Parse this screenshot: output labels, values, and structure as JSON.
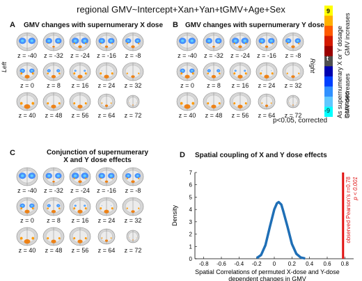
{
  "figure_title": "regional GMV~Intercept+Xan+Yan+tGMV+Age+Sex",
  "panels": {
    "A": {
      "letter": "A",
      "title": "GMV changes with supernumerary X dose"
    },
    "B": {
      "letter": "B",
      "title": "GMV changes with supernumerary Y dose"
    },
    "C": {
      "letter": "C",
      "title_line1": "Conjunction of supernumerary",
      "title_line2": "X and Y dose effects"
    },
    "D": {
      "letter": "D",
      "title": "Spatial coupling of X and Y dose effects"
    }
  },
  "side_labels": {
    "left": "Left",
    "right": "Right"
  },
  "z_labels": [
    "z = -40",
    "z = -32",
    "z = -24",
    "z = -16",
    "z = -8",
    "z = 0",
    "z = 8",
    "z = 16",
    "z = 24",
    "z = 32",
    "z = 40",
    "z = 48",
    "z = 56",
    "z = 64",
    "z = 72"
  ],
  "colorbar": {
    "top_value": "9",
    "mid_value": "t",
    "bottom_value": "-9",
    "increase_text_1": "As supernumerary X or Y dosage increases",
    "increase_text_2": "GMV increases",
    "decrease_text": "GMV decreases",
    "threshold_note": "p<0.05, corrected",
    "colors": [
      "#ffff00",
      "#ffb000",
      "#ff5a00",
      "#d41a00",
      "#9a0000",
      "#505050",
      "#0000b0",
      "#0040ff",
      "#3090ff",
      "#60c8ff",
      "#00ffff"
    ]
  },
  "chart_data": {
    "type": "line",
    "title": "Spatial coupling of X and Y dose effects",
    "xlabel": "Spatial Correlations of permuted X-dose and Y-dose",
    "xlabel2": "dependent changes in GMV",
    "ylabel": "Density",
    "xlim": [
      -0.9,
      0.9
    ],
    "ylim": [
      0,
      7
    ],
    "xticks": [
      "-0.8",
      "-0.6",
      "-0.4",
      "-0.2",
      "0",
      "0.2",
      "0.4",
      "0.6",
      "0.8"
    ],
    "yticks": [
      "0",
      "1",
      "2",
      "3",
      "4",
      "5",
      "6",
      "7"
    ],
    "series": [
      {
        "x": [
          -0.2,
          -0.15,
          -0.1,
          -0.05,
          0,
          0.03,
          0.05,
          0.08,
          0.1,
          0.15,
          0.2,
          0.25,
          0.3,
          0.35
        ],
        "y": [
          0.05,
          0.3,
          1.1,
          2.6,
          4.0,
          4.5,
          4.6,
          4.4,
          3.9,
          2.6,
          1.2,
          0.4,
          0.1,
          0.02
        ],
        "color": "#1f6fb6"
      }
    ],
    "observed": {
      "x": 0.78,
      "label_line1": "observed  Pearson's r=0.78",
      "label_line2": "p < 0.001",
      "color": "#e01010"
    }
  }
}
